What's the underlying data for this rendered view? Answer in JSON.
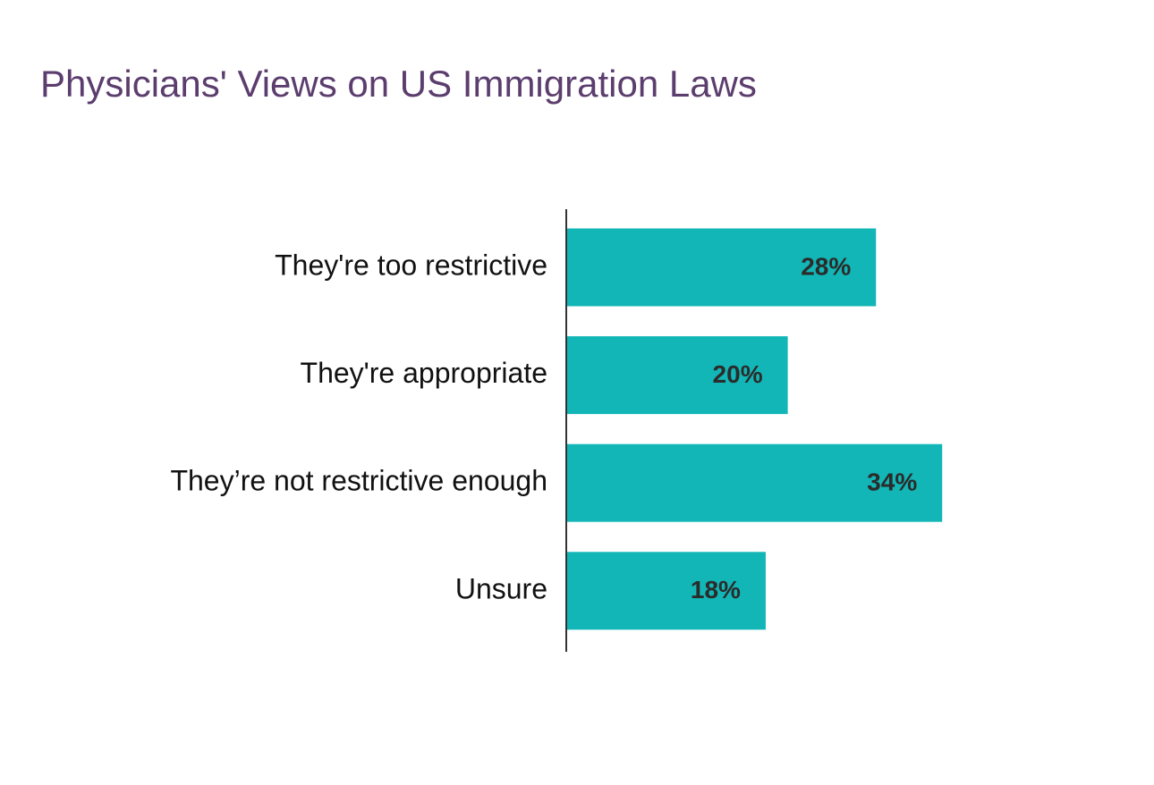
{
  "chart_data": {
    "type": "hbar",
    "title": "Physicians' Views on US Immigration Laws",
    "categories": [
      "They're too restrictive",
      "They're appropriate",
      "They’re not restrictive enough",
      "Unsure"
    ],
    "values": [
      28,
      20,
      34,
      18
    ],
    "value_labels": [
      "28%",
      "20%",
      "34%",
      "18%"
    ],
    "color": "#12b6b6"
  }
}
